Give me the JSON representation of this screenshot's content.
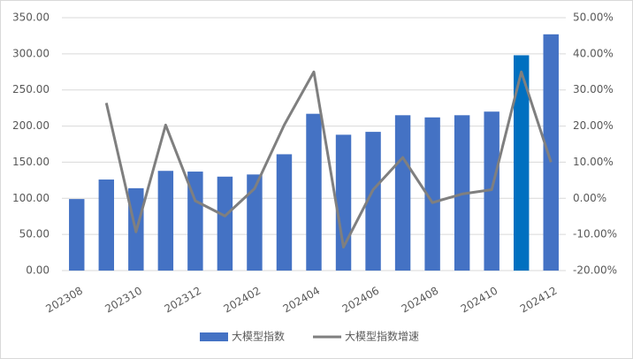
{
  "chart_data": {
    "type": "bar_line",
    "categories": [
      "202308",
      null,
      "202310",
      null,
      "202312",
      null,
      "202402",
      null,
      "202404",
      null,
      "202406",
      null,
      "202408",
      null,
      "202410",
      null,
      "202412"
    ],
    "series": [
      {
        "name": "大模型指数",
        "type": "bar",
        "color": "#4472c4",
        "colors": [
          "#4472c4",
          "#4472c4",
          "#4472c4",
          "#4472c4",
          "#4472c4",
          "#4472c4",
          "#4472c4",
          "#4472c4",
          "#4472c4",
          "#4472c4",
          "#4472c4",
          "#4472c4",
          "#4472c4",
          "#4472c4",
          "#4472c4",
          "#0070c0",
          "#4472c4"
        ],
        "values": [
          99,
          126,
          114,
          138,
          137,
          130,
          133,
          161,
          217,
          188,
          192,
          215,
          212,
          215,
          220,
          298,
          327
        ]
      },
      {
        "name": "大模型指数增速",
        "type": "line",
        "color": "#7f7f7f",
        "axis": "y2",
        "values": [
          null,
          26.4,
          -9.3,
          20.3,
          -0.7,
          -4.9,
          2.7,
          20.3,
          35,
          -13.5,
          2.4,
          11.3,
          -1.2,
          1.2,
          2.4,
          35,
          10
        ]
      }
    ],
    "ylim": [
      0,
      350
    ],
    "yticks": [
      {
        "value": 0,
        "label": "0.00"
      },
      {
        "value": 50,
        "label": "50.00"
      },
      {
        "value": 100,
        "label": "100.00"
      },
      {
        "value": 150,
        "label": "150.00"
      },
      {
        "value": 200,
        "label": "200.00"
      },
      {
        "value": 250,
        "label": "250.00"
      },
      {
        "value": 300,
        "label": "300.00"
      },
      {
        "value": 350,
        "label": "350.00"
      }
    ],
    "y2lim": [
      -20,
      50
    ],
    "y2ticks": [
      {
        "value": -20,
        "label": "-20.00%"
      },
      {
        "value": -10,
        "label": "-10.00%"
      },
      {
        "value": 0,
        "label": "0.00%"
      },
      {
        "value": 10,
        "label": "10.00%"
      },
      {
        "value": 20,
        "label": "20.00%"
      },
      {
        "value": 30,
        "label": "30.00%"
      },
      {
        "value": 40,
        "label": "40.00%"
      },
      {
        "value": 50,
        "label": "50.00%"
      }
    ],
    "grid": true,
    "legend": "bottom"
  }
}
